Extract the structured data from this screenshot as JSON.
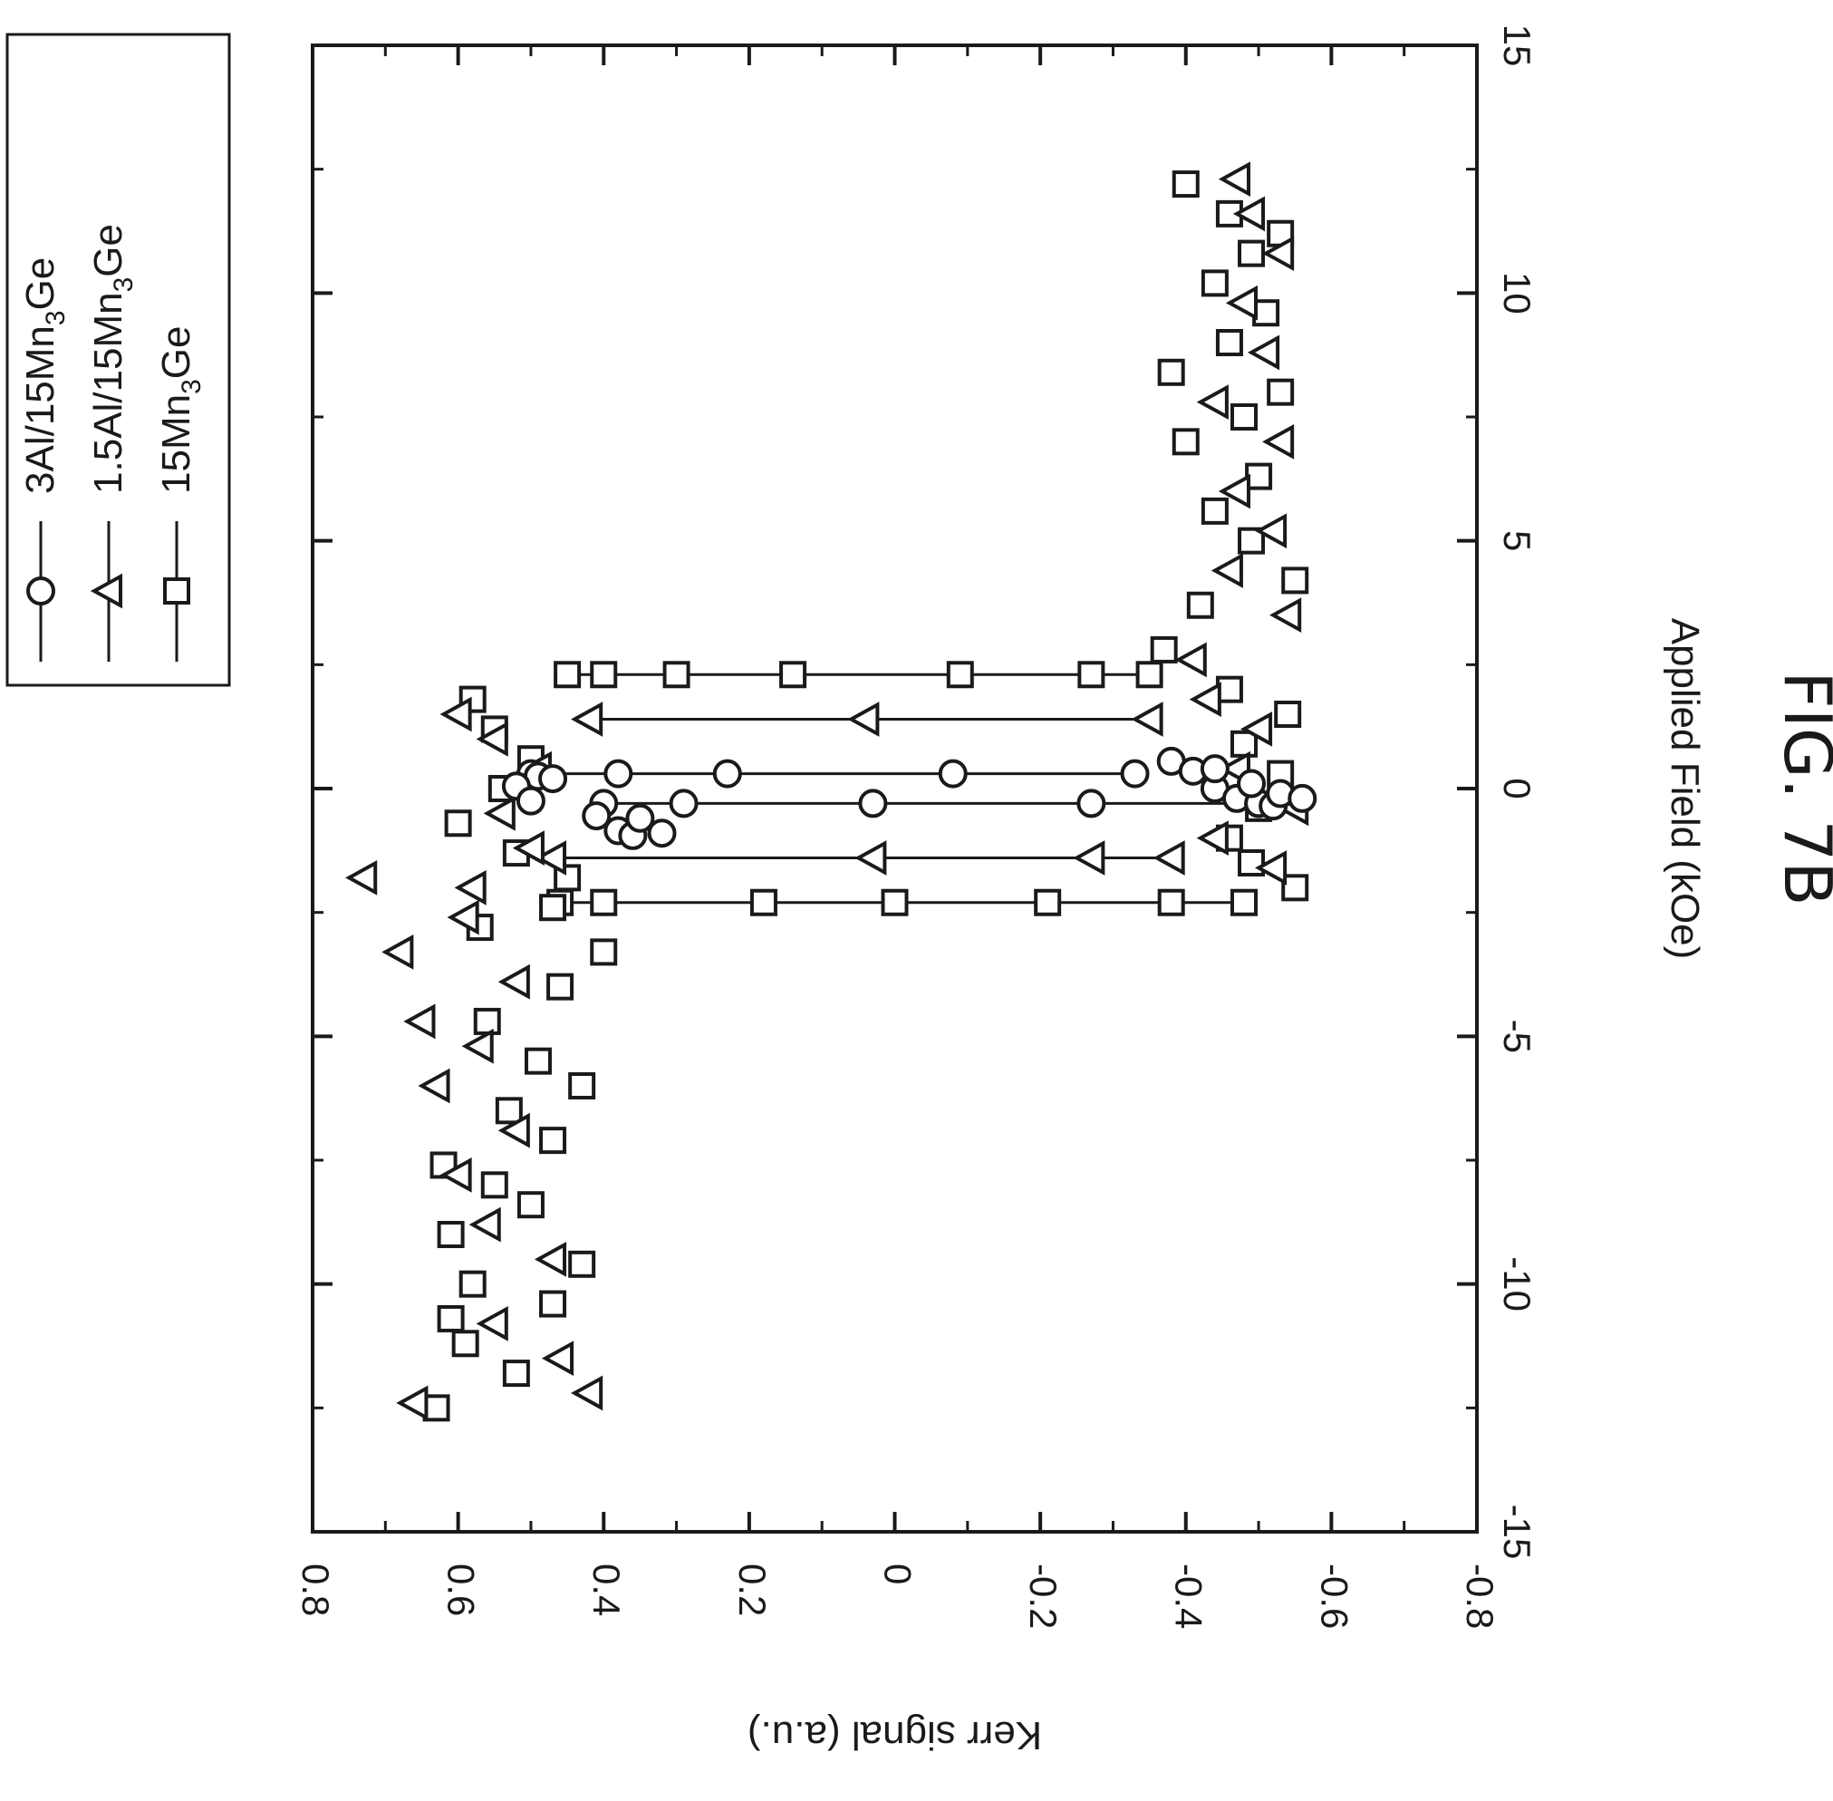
{
  "figure_label": "FIG. 7B",
  "chart_data": {
    "type": "scatter",
    "orientation": "rotated 90 degrees clockwise",
    "xlabel": "Applied Field (kOe)",
    "ylabel": "Kerr signal (a.u.)",
    "xlim": [
      -15,
      15
    ],
    "ylim": [
      -0.8,
      0.8
    ],
    "x_ticks": [
      -15,
      -10,
      -5,
      0,
      5,
      10,
      15
    ],
    "x_tick_labels": [
      "-15",
      "-10",
      "-5",
      "0",
      "5",
      "10",
      "15"
    ],
    "y_ticks": [
      0.8,
      0.6,
      0.4,
      0.2,
      0,
      -0.2,
      -0.4,
      -0.6,
      -0.8
    ],
    "y_tick_labels": [
      "0.8",
      "0.6",
      "0.4",
      "0.2",
      "0",
      "-0.2",
      "-0.4",
      "-0.6",
      "-0.8"
    ],
    "legend": {
      "placement": "top-left",
      "entries": [
        {
          "marker": "square",
          "base": "15Mn",
          "sub": "3",
          "tail": "Ge"
        },
        {
          "marker": "triangle",
          "base": "1.5Al/15Mn",
          "sub": "3",
          "tail": "Ge"
        },
        {
          "marker": "circle",
          "base": "3Al/15Mn",
          "sub": "3",
          "tail": "Ge"
        }
      ]
    },
    "series": [
      {
        "name": "15Mn3Ge",
        "marker": "square",
        "sweep_up": {
          "x": 2.3,
          "y": [
            0.45,
            0.4,
            0.3,
            0.14,
            -0.09,
            -0.27,
            -0.35
          ]
        },
        "sweep_down": {
          "x": -2.3,
          "y": [
            -0.48,
            -0.38,
            -0.21,
            0.0,
            0.18,
            0.4,
            0.46
          ]
        },
        "points": [
          [
            -12.5,
            0.63
          ],
          [
            -11.8,
            0.52
          ],
          [
            -11.2,
            0.59
          ],
          [
            -10.7,
            0.61
          ],
          [
            -10.4,
            0.47
          ],
          [
            -10.0,
            0.58
          ],
          [
            -9.6,
            0.43
          ],
          [
            -9.0,
            0.61
          ],
          [
            -8.4,
            0.5
          ],
          [
            -8.0,
            0.55
          ],
          [
            -7.6,
            0.62
          ],
          [
            -7.1,
            0.47
          ],
          [
            -6.5,
            0.53
          ],
          [
            -6.0,
            0.43
          ],
          [
            -5.5,
            0.49
          ],
          [
            -4.7,
            0.56
          ],
          [
            -4.0,
            0.46
          ],
          [
            -3.3,
            0.4
          ],
          [
            -2.8,
            0.57
          ],
          [
            -2.4,
            0.47
          ],
          [
            -1.8,
            0.45
          ],
          [
            -1.3,
            0.52
          ],
          [
            -0.7,
            0.6
          ],
          [
            0.0,
            0.54
          ],
          [
            0.6,
            0.5
          ],
          [
            1.2,
            0.55
          ],
          [
            1.8,
            0.58
          ],
          [
            -2.0,
            -0.55
          ],
          [
            -1.5,
            -0.49
          ],
          [
            -1.0,
            -0.46
          ],
          [
            -0.4,
            -0.5
          ],
          [
            0.3,
            -0.53
          ],
          [
            0.9,
            -0.48
          ],
          [
            1.5,
            -0.54
          ],
          [
            2.0,
            -0.46
          ],
          [
            2.8,
            -0.37
          ],
          [
            3.7,
            -0.42
          ],
          [
            4.2,
            -0.55
          ],
          [
            5.0,
            -0.49
          ],
          [
            5.6,
            -0.44
          ],
          [
            6.3,
            -0.5
          ],
          [
            7.0,
            -0.4
          ],
          [
            7.5,
            -0.48
          ],
          [
            8.0,
            -0.53
          ],
          [
            8.4,
            -0.38
          ],
          [
            9.0,
            -0.46
          ],
          [
            9.6,
            -0.51
          ],
          [
            10.2,
            -0.44
          ],
          [
            10.8,
            -0.49
          ],
          [
            11.2,
            -0.53
          ],
          [
            11.6,
            -0.46
          ],
          [
            12.2,
            -0.4
          ]
        ]
      },
      {
        "name": "1.5Al/15Mn3Ge",
        "marker": "triangle",
        "sweep_up": {
          "x": 1.4,
          "y": [
            0.42,
            0.04,
            -0.35
          ]
        },
        "sweep_down": {
          "x": -1.4,
          "y": [
            -0.38,
            -0.27,
            0.03,
            0.47
          ]
        },
        "points": [
          [
            -12.4,
            0.66
          ],
          [
            -12.2,
            0.42
          ],
          [
            -11.5,
            0.46
          ],
          [
            -10.8,
            0.55
          ],
          [
            -9.5,
            0.47
          ],
          [
            -8.8,
            0.56
          ],
          [
            -7.8,
            0.6
          ],
          [
            -6.9,
            0.52
          ],
          [
            -6.0,
            0.63
          ],
          [
            -5.2,
            0.57
          ],
          [
            -4.7,
            0.65
          ],
          [
            -3.9,
            0.52
          ],
          [
            -3.3,
            0.68
          ],
          [
            -2.6,
            0.59
          ],
          [
            -2.0,
            0.58
          ],
          [
            -1.8,
            0.73
          ],
          [
            -1.2,
            0.5
          ],
          [
            -0.5,
            0.54
          ],
          [
            0.4,
            0.49
          ],
          [
            1.0,
            0.55
          ],
          [
            1.5,
            0.6
          ],
          [
            -1.6,
            -0.52
          ],
          [
            -1.0,
            -0.44
          ],
          [
            -0.4,
            -0.55
          ],
          [
            0.4,
            -0.47
          ],
          [
            1.2,
            -0.5
          ],
          [
            1.8,
            -0.43
          ],
          [
            2.6,
            -0.41
          ],
          [
            3.5,
            -0.54
          ],
          [
            4.4,
            -0.46
          ],
          [
            5.2,
            -0.52
          ],
          [
            6.0,
            -0.47
          ],
          [
            7.0,
            -0.53
          ],
          [
            7.8,
            -0.44
          ],
          [
            8.8,
            -0.51
          ],
          [
            9.8,
            -0.48
          ],
          [
            10.8,
            -0.53
          ],
          [
            11.6,
            -0.49
          ],
          [
            12.3,
            -0.47
          ]
        ]
      },
      {
        "name": "3Al/15Mn3Ge",
        "marker": "circle",
        "sweep_up": {
          "x": 0.3,
          "y": [
            0.5,
            0.38,
            0.23,
            -0.08,
            -0.33
          ]
        },
        "sweep_down": {
          "x": -0.3,
          "y": [
            -0.5,
            -0.27,
            0.03,
            0.29,
            0.4
          ]
        },
        "points": [
          [
            0.25,
            0.49
          ],
          [
            0.05,
            0.52
          ],
          [
            -0.25,
            0.5
          ],
          [
            -0.55,
            0.41
          ],
          [
            -0.85,
            0.38
          ],
          [
            -0.95,
            0.36
          ],
          [
            -0.9,
            0.32
          ],
          [
            -0.6,
            0.35
          ],
          [
            0.2,
            0.47
          ],
          [
            0.55,
            -0.38
          ],
          [
            0.35,
            -0.41
          ],
          [
            0.0,
            -0.44
          ],
          [
            -0.2,
            -0.47
          ],
          [
            -0.3,
            -0.5
          ],
          [
            -0.35,
            -0.52
          ],
          [
            0.4,
            -0.44
          ],
          [
            0.1,
            -0.49
          ],
          [
            -0.1,
            -0.53
          ],
          [
            -0.2,
            -0.56
          ]
        ]
      }
    ]
  }
}
